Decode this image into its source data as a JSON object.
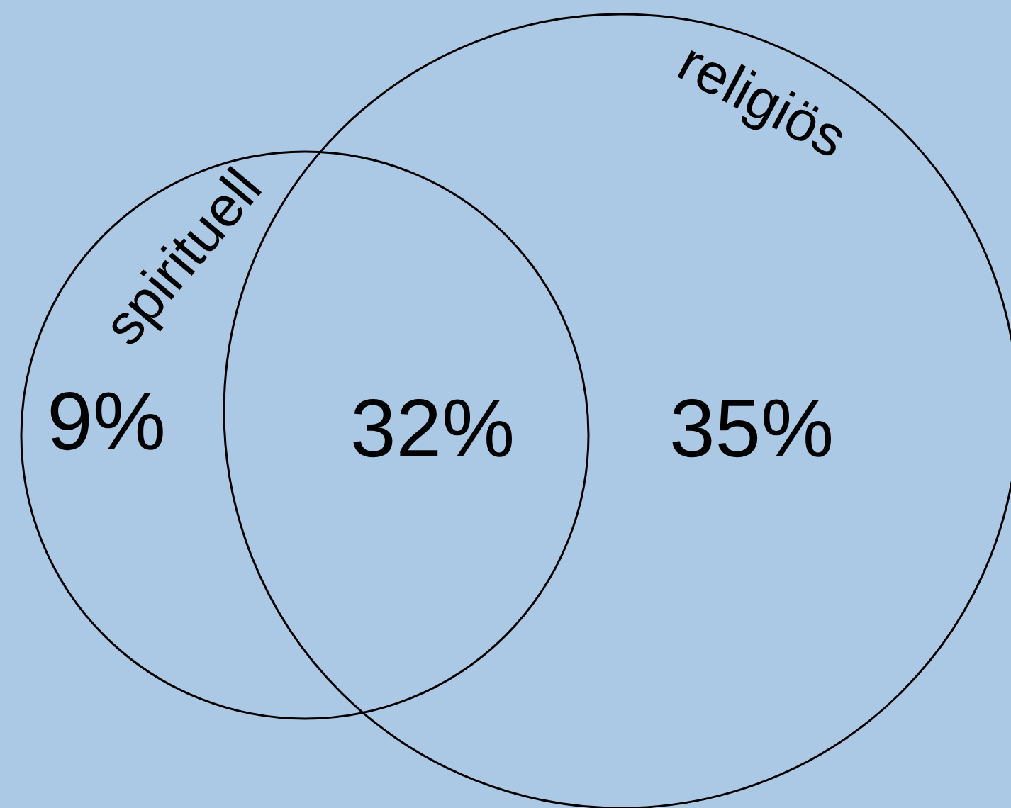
{
  "chart_data": {
    "type": "other",
    "categories": [
      null,
      null,
      null
    ],
    "values": [
      9,
      32,
      35
    ],
    "value_labels": [
      "9%",
      "32%",
      "35%"
    ],
    "annotations": [
      "spirituell",
      "religiös"
    ]
  }
}
